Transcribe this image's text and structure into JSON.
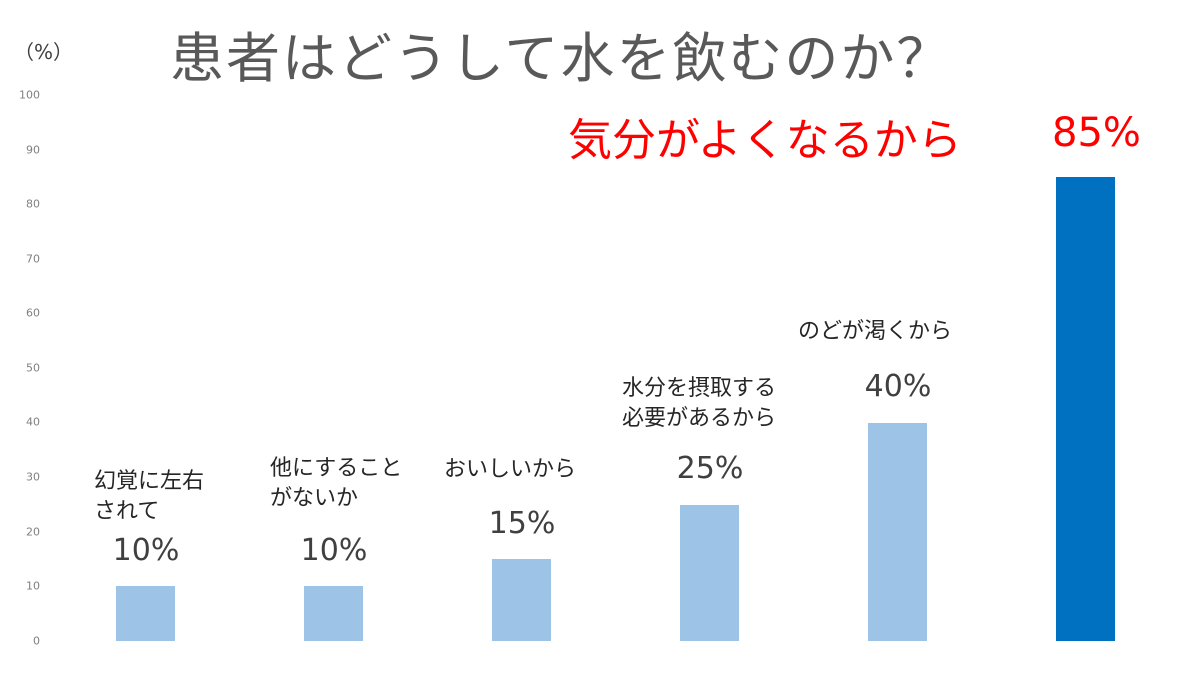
{
  "chart_data": {
    "type": "bar",
    "title": "患者はどうして水を飲むのか？",
    "ylabel": "(%)",
    "xlabel": "",
    "ylim": [
      0,
      100
    ],
    "yticks": [
      "0",
      "10",
      "20",
      "30",
      "40",
      "50",
      "60",
      "70",
      "80",
      "90",
      "100"
    ],
    "grid": false,
    "legend": null,
    "categories": [
      "幻覚に左右されて",
      "他にすることがないか",
      "おいしいから",
      "水分を摂取する必要があるから",
      "のどが渇くから",
      "気分がよくなるから"
    ],
    "values": [
      10,
      10,
      15,
      25,
      40,
      85
    ],
    "value_labels": [
      "10%",
      "10%",
      "15%",
      "25%",
      "40%",
      "85%"
    ],
    "bar_colors": [
      "#9dc3e6",
      "#9dc3e6",
      "#9dc3e6",
      "#9dc3e6",
      "#9dc3e6",
      "#0070c0"
    ],
    "highlight": {
      "category": "気分がよくなるから",
      "value_label": "85%",
      "color": "#ff0000"
    }
  },
  "header": {
    "unit": "（%）",
    "title": "患者はどうして水を飲むのか？"
  },
  "bars": [
    {
      "label": "幻覚に左右\nされて",
      "pct": "10%",
      "value": 10,
      "color": "#9dc3e6"
    },
    {
      "label": "他にすること\nがないか",
      "pct": "10%",
      "value": 10,
      "color": "#9dc3e6"
    },
    {
      "label": "おいしいから",
      "pct": "15%",
      "value": 15,
      "color": "#9dc3e6"
    },
    {
      "label": "水分を摂取する\n必要があるから",
      "pct": "25%",
      "value": 25,
      "color": "#9dc3e6"
    },
    {
      "label": "のどが渇くから",
      "pct": "40%",
      "value": 40,
      "color": "#9dc3e6"
    },
    {
      "label": "気分がよくなるから",
      "pct": "85%",
      "value": 85,
      "color": "#0070c0"
    }
  ]
}
